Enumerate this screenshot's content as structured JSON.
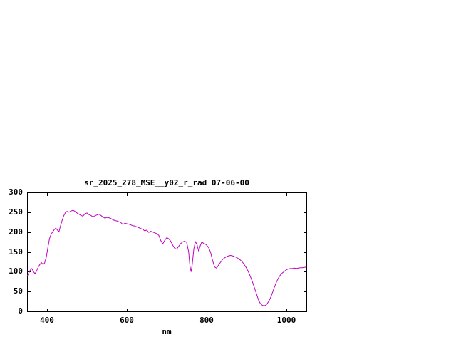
{
  "colors": {
    "line": "#C000C0",
    "frame": "#000000",
    "background": "#FFFFFF",
    "text": "#000000"
  },
  "chart_data": {
    "type": "line",
    "title": "sr_2025_278_MSE__y02_r_rad 07-06-00",
    "xlabel": "nm",
    "ylabel": "",
    "xlim": [
      350,
      1050
    ],
    "ylim": [
      0,
      300
    ],
    "xticks": [
      400,
      600,
      800,
      1000
    ],
    "yticks": [
      0,
      50,
      100,
      150,
      200,
      250,
      300
    ],
    "grid": false,
    "legend": "none",
    "series": [
      {
        "name": "sr_2025_278_MSE__y02_r_rad",
        "color": "#C000C0",
        "x": [
          350,
          354,
          358,
          362,
          366,
          370,
          374,
          378,
          382,
          386,
          390,
          394,
          398,
          402,
          406,
          410,
          414,
          418,
          422,
          426,
          430,
          434,
          438,
          442,
          446,
          450,
          455,
          460,
          465,
          470,
          475,
          480,
          485,
          490,
          495,
          500,
          505,
          510,
          515,
          520,
          525,
          530,
          535,
          540,
          545,
          550,
          555,
          560,
          565,
          570,
          575,
          580,
          585,
          590,
          595,
          600,
          605,
          610,
          615,
          620,
          625,
          630,
          635,
          640,
          645,
          650,
          655,
          660,
          665,
          670,
          675,
          680,
          685,
          690,
          695,
          700,
          705,
          710,
          715,
          720,
          725,
          730,
          735,
          740,
          745,
          750,
          755,
          758,
          761,
          764,
          768,
          772,
          776,
          780,
          784,
          788,
          792,
          796,
          800,
          805,
          810,
          815,
          820,
          825,
          830,
          835,
          840,
          845,
          850,
          855,
          860,
          865,
          870,
          875,
          880,
          885,
          890,
          895,
          900,
          905,
          910,
          915,
          920,
          925,
          930,
          935,
          940,
          945,
          950,
          955,
          960,
          965,
          970,
          975,
          980,
          985,
          990,
          995,
          1000,
          1005,
          1010,
          1015,
          1020,
          1025,
          1030,
          1035,
          1040,
          1045,
          1050
        ],
        "y": [
          88,
          96,
          104,
          108,
          100,
          95,
          102,
          112,
          118,
          123,
          118,
          122,
          136,
          160,
          183,
          194,
          200,
          206,
          210,
          205,
          201,
          216,
          230,
          241,
          249,
          252,
          250,
          253,
          255,
          252,
          248,
          245,
          242,
          240,
          246,
          248,
          244,
          242,
          238,
          241,
          243,
          245,
          242,
          238,
          235,
          237,
          236,
          234,
          231,
          229,
          228,
          226,
          224,
          219,
          222,
          221,
          220,
          218,
          216,
          215,
          213,
          211,
          209,
          207,
          203,
          205,
          199,
          202,
          200,
          198,
          196,
          192,
          179,
          170,
          179,
          186,
          183,
          177,
          167,
          159,
          157,
          164,
          171,
          175,
          177,
          174,
          150,
          115,
          100,
          118,
          158,
          176,
          168,
          152,
          165,
          175,
          172,
          170,
          167,
          161,
          149,
          128,
          112,
          109,
          117,
          124,
          131,
          135,
          138,
          140,
          141,
          140,
          138,
          136,
          133,
          129,
          124,
          117,
          109,
          99,
          87,
          74,
          59,
          44,
          29,
          19,
          15,
          14,
          17,
          24,
          34,
          47,
          61,
          74,
          84,
          92,
          97,
          101,
          105,
          107,
          108,
          108,
          109,
          108,
          109,
          110,
          110,
          111,
          112
        ]
      }
    ]
  }
}
